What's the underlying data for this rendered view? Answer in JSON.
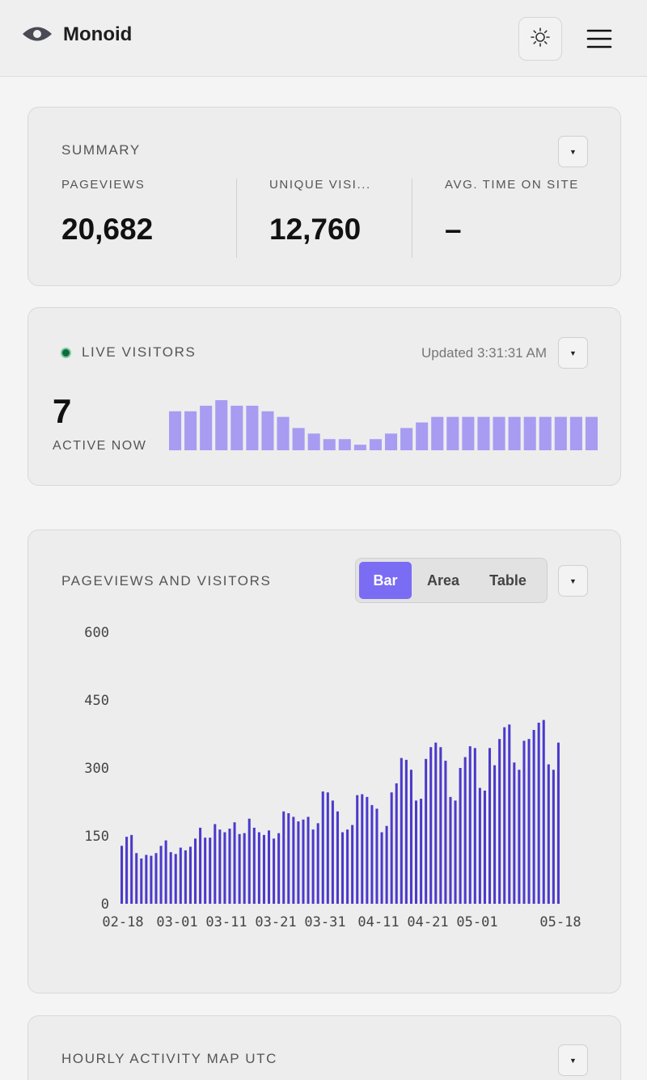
{
  "app": {
    "name": "Monoid"
  },
  "header": {
    "logo_icon": "eye-icon",
    "theme_icon": "sun-icon",
    "menu_icon": "hamburger-menu-icon"
  },
  "summary": {
    "title": "SUMMARY",
    "dropdown_icon": "caret-down-icon",
    "metrics": [
      {
        "label": "PAGEVIEWS",
        "value": "20,682"
      },
      {
        "label": "UNIQUE VISI...",
        "value": "12,760"
      },
      {
        "label": "AVG. TIME ON SITE",
        "value": "–"
      }
    ]
  },
  "live": {
    "title": "LIVE VISITORS",
    "status_color": "#0f6b3c",
    "updated": "Updated 3:31:31 AM",
    "active_count": "7",
    "active_label": "ACTIVE NOW",
    "bar_color": "#a79cf2",
    "sparkline": [
      7,
      7,
      8,
      9,
      8,
      8,
      7,
      6,
      4,
      3,
      2,
      2,
      1,
      2,
      3,
      4,
      5,
      6,
      6,
      6,
      6,
      6,
      6,
      6,
      6,
      6,
      6,
      6
    ]
  },
  "pageviews": {
    "title": "PAGEVIEWS AND VISITORS",
    "views": [
      {
        "label": "Bar",
        "active": true
      },
      {
        "label": "Area",
        "active": false
      },
      {
        "label": "Table",
        "active": false
      }
    ],
    "accent": "#7b6cf4"
  },
  "heatmap": {
    "title": "HOURLY ACTIVITY MAP UTC"
  },
  "chart_data": {
    "type": "bar",
    "color": "#4b3acb",
    "ylim": [
      0,
      600
    ],
    "yticks": [
      0,
      150,
      300,
      450,
      600
    ],
    "xticks": [
      "02-18",
      "03-01",
      "03-11",
      "03-21",
      "03-31",
      "04-11",
      "04-21",
      "05-01",
      "05-18"
    ],
    "grid": false,
    "values": [
      128,
      148,
      152,
      112,
      100,
      108,
      106,
      112,
      128,
      140,
      114,
      110,
      124,
      118,
      126,
      144,
      168,
      146,
      146,
      176,
      164,
      158,
      166,
      180,
      154,
      156,
      188,
      168,
      158,
      152,
      162,
      144,
      156,
      204,
      200,
      192,
      182,
      186,
      192,
      164,
      178,
      248,
      246,
      228,
      204,
      158,
      164,
      174,
      240,
      242,
      236,
      218,
      210,
      158,
      172,
      246,
      266,
      322,
      318,
      296,
      228,
      232,
      320,
      346,
      356,
      346,
      316,
      236,
      228,
      300,
      324,
      348,
      344,
      256,
      250,
      344,
      306,
      364,
      390,
      396,
      312,
      296,
      360,
      364,
      384,
      400,
      406,
      308,
      296,
      356
    ]
  }
}
